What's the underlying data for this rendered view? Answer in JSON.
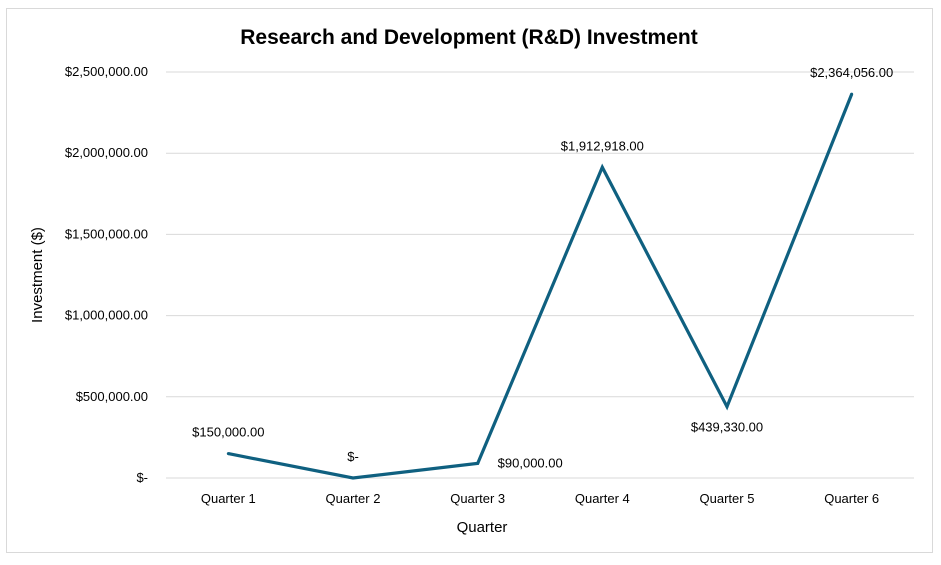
{
  "chart_data": {
    "type": "line",
    "title": "Research and Development (R&D) Investment",
    "xlabel": "Quarter",
    "ylabel": "Investment ($)",
    "categories": [
      "Quarter 1",
      "Quarter 2",
      "Quarter 3",
      "Quarter 4",
      "Quarter 5",
      "Quarter 6"
    ],
    "series": [
      {
        "values": [
          150000,
          0,
          90000,
          1912918,
          439330,
          2364056
        ]
      }
    ],
    "data_labels": [
      "$150,000.00",
      "$-",
      "$90,000.00",
      "$1,912,918.00",
      "$439,330.00",
      "$2,364,056.00"
    ],
    "ylim": [
      0,
      2500000
    ],
    "yticks": [
      0,
      500000,
      1000000,
      1500000,
      2000000,
      2500000
    ],
    "ytick_labels": [
      "$-",
      "$500,000.00",
      "$1,000,000.00",
      "$1,500,000.00",
      "$2,000,000.00",
      "$2,500,000.00"
    ],
    "grid": true,
    "legend": "none",
    "line_color": "#0f6080",
    "grid_color": "#d9d9d9"
  }
}
